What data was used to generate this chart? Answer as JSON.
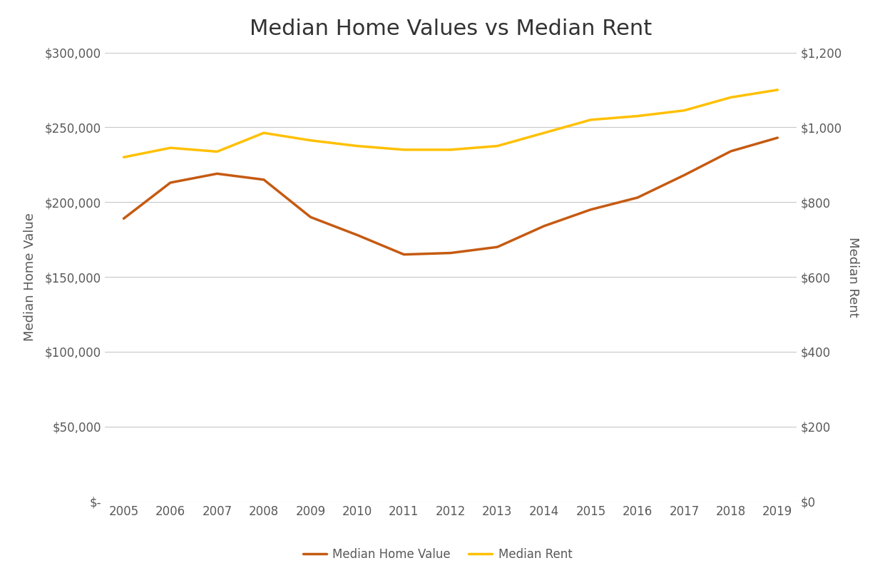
{
  "title": "Median Home Values vs Median Rent",
  "years": [
    2005,
    2006,
    2007,
    2008,
    2009,
    2010,
    2011,
    2012,
    2013,
    2014,
    2015,
    2016,
    2017,
    2018,
    2019
  ],
  "home_values": [
    189000,
    213000,
    219000,
    215000,
    190000,
    178000,
    165000,
    166000,
    170000,
    184000,
    195000,
    203000,
    218000,
    234000,
    243000
  ],
  "median_rent": [
    920,
    945,
    935,
    985,
    965,
    950,
    940,
    940,
    950,
    985,
    1020,
    1030,
    1045,
    1080,
    1100
  ],
  "home_value_color": "#C55A11",
  "rent_color": "#FFC000",
  "home_value_label": "Median Home Value",
  "rent_label": "Median Rent",
  "left_ylabel": "Median Home Value",
  "right_ylabel": "Median Rent",
  "left_ylim": [
    0,
    300000
  ],
  "right_ylim": [
    0,
    1200
  ],
  "left_yticks": [
    0,
    50000,
    100000,
    150000,
    200000,
    250000,
    300000
  ],
  "right_yticks": [
    0,
    200,
    400,
    600,
    800,
    1000,
    1200
  ],
  "left_yticklabels": [
    "$-",
    "$50,000",
    "$100,000",
    "$150,000",
    "$200,000",
    "$250,000",
    "$300,000"
  ],
  "right_yticklabels": [
    "$0",
    "$200",
    "$400",
    "$600",
    "$800",
    "$1,000",
    "$1,200"
  ],
  "background_color": "#ffffff",
  "grid_color": "#c8c8c8",
  "title_fontsize": 22,
  "axis_label_fontsize": 13,
  "tick_fontsize": 12,
  "legend_fontsize": 12,
  "line_width": 2.5,
  "text_color": "#595959"
}
